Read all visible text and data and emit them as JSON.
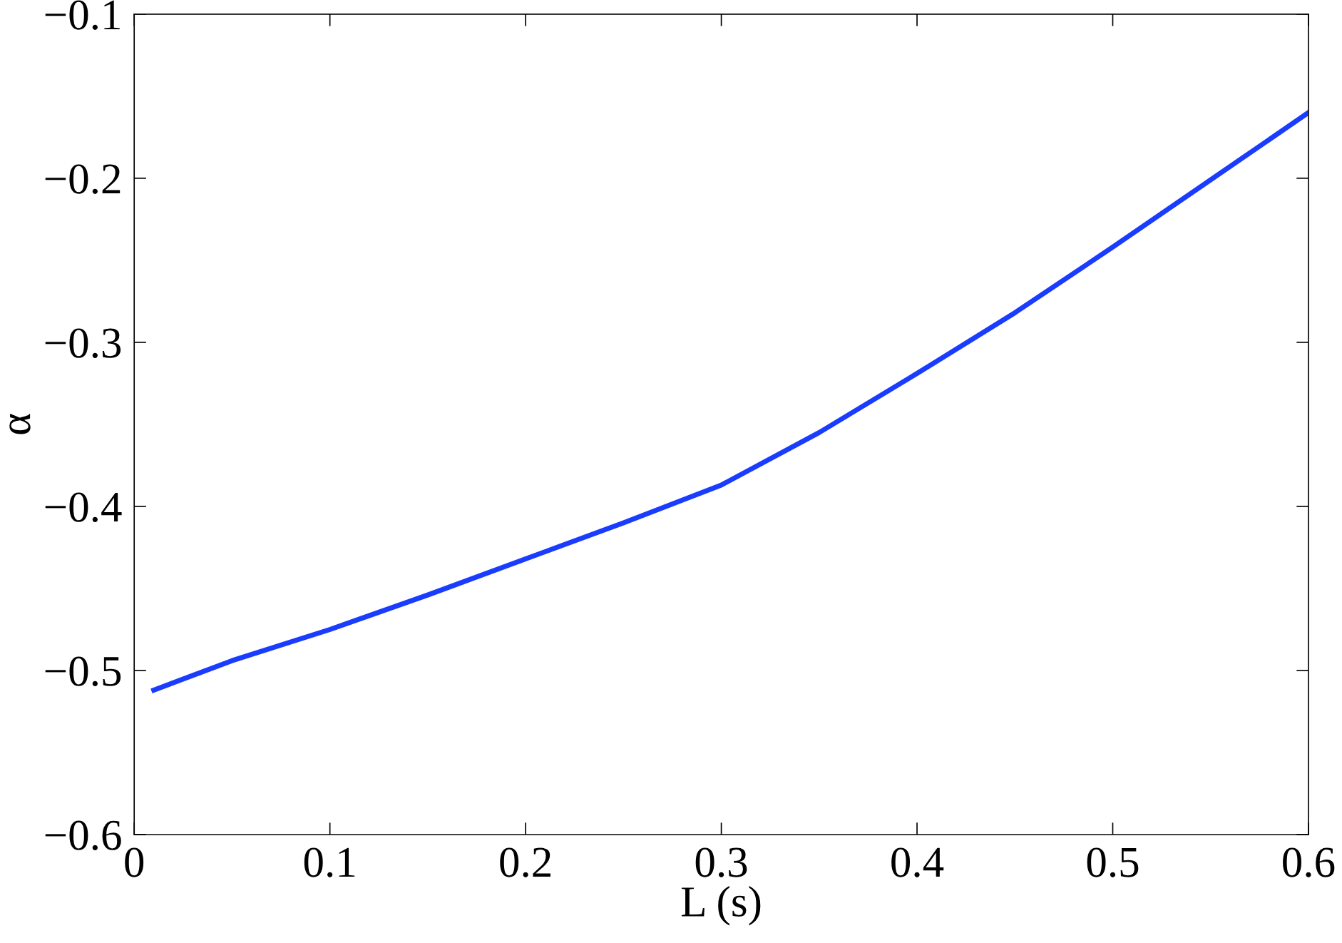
{
  "chart_data": {
    "type": "line",
    "xlabel": "L (s)",
    "ylabel": "α",
    "x": [
      0.01,
      0.05,
      0.1,
      0.15,
      0.2,
      0.25,
      0.3,
      0.35,
      0.4,
      0.45,
      0.5,
      0.55,
      0.6
    ],
    "series": [
      {
        "color": "#1a3cff",
        "values": [
          -0.512,
          -0.494,
          -0.475,
          -0.454,
          -0.432,
          -0.41,
          -0.387,
          -0.355,
          -0.319,
          -0.282,
          -0.242,
          -0.201,
          -0.16
        ]
      }
    ],
    "xlim": [
      0,
      0.6
    ],
    "xticks": [
      0,
      0.1,
      0.2,
      0.3,
      0.4,
      0.5,
      0.6
    ],
    "ylim": [
      -0.6,
      -0.1
    ],
    "yticks": [
      {
        "value": -0.6,
        "label": "−0.6"
      },
      {
        "value": -0.5,
        "label": "−0.5"
      },
      {
        "value": -0.4,
        "label": "−0.4"
      },
      {
        "value": -0.3,
        "label": "−0.3"
      },
      {
        "value": -0.2,
        "label": "−0.2"
      },
      {
        "value": -0.1,
        "label": "−0.1"
      }
    ],
    "grid": false,
    "legend": false,
    "marker": "none",
    "line_style": "solid"
  }
}
